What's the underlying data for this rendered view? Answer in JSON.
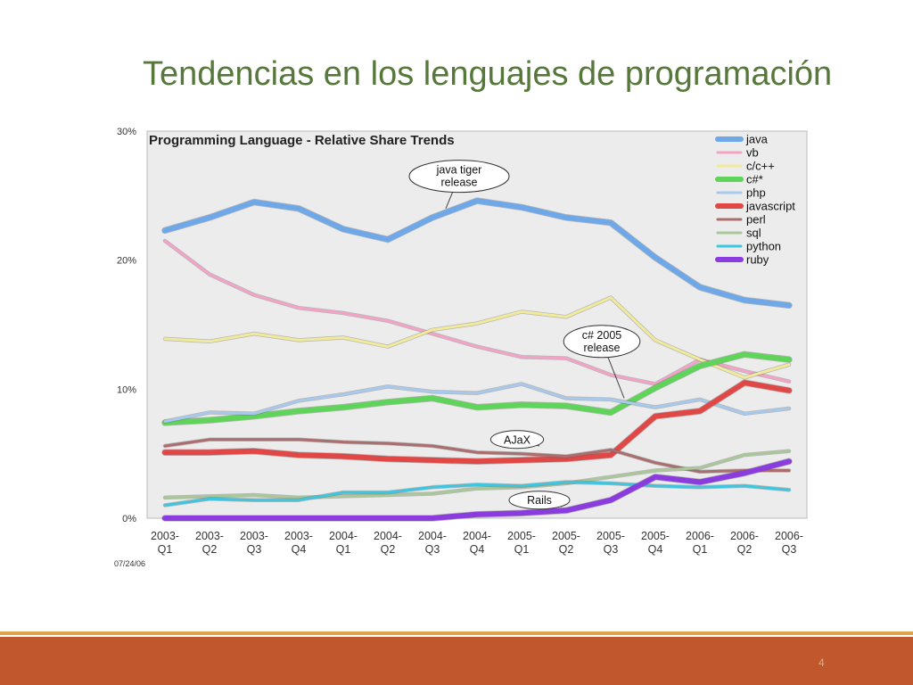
{
  "slide": {
    "title": "Tendencias en los lenguajes de programación",
    "page_number": "4",
    "footer_color": "#c0572d",
    "footer_line_color": "#e0a24a"
  },
  "chart_data": {
    "type": "line",
    "title": "Programming Language - Relative Share Trends",
    "date_note": "07/24/06",
    "ylim": [
      0,
      30
    ],
    "yticks": [
      {
        "value": 0,
        "label": "0%"
      },
      {
        "value": 10,
        "label": "10%"
      },
      {
        "value": 20,
        "label": "20%"
      },
      {
        "value": 30,
        "label": "30%"
      }
    ],
    "categories": [
      [
        "2003-",
        "Q1"
      ],
      [
        "2003-",
        "Q2"
      ],
      [
        "2003-",
        "Q3"
      ],
      [
        "2003-",
        "Q4"
      ],
      [
        "2004-",
        "Q1"
      ],
      [
        "2004-",
        "Q2"
      ],
      [
        "2004-",
        "Q3"
      ],
      [
        "2004-",
        "Q4"
      ],
      [
        "2005-",
        "Q1"
      ],
      [
        "2005-",
        "Q2"
      ],
      [
        "2005-",
        "Q3"
      ],
      [
        "2005-",
        "Q4"
      ],
      [
        "2006-",
        "Q1"
      ],
      [
        "2006-",
        "Q2"
      ],
      [
        "2006-",
        "Q3"
      ]
    ],
    "legend_position": "top-right",
    "plot_background": "#ececec",
    "series": [
      {
        "name": "java",
        "color": "#6fa8e8",
        "width": 6,
        "values": [
          22.3,
          23.3,
          24.5,
          24.0,
          22.4,
          21.6,
          23.3,
          24.6,
          24.1,
          23.3,
          22.9,
          20.2,
          17.9,
          16.9,
          16.5
        ]
      },
      {
        "name": "vb",
        "color": "#f2a3c6",
        "width": 3,
        "values": [
          21.5,
          18.9,
          17.3,
          16.3,
          15.9,
          15.3,
          14.3,
          13.3,
          12.5,
          12.4,
          11.1,
          10.4,
          12.3,
          11.4,
          10.6
        ]
      },
      {
        "name": "c/c++",
        "color": "#f0ea9a",
        "width": 3,
        "values": [
          13.9,
          13.7,
          14.3,
          13.8,
          14.0,
          13.3,
          14.6,
          15.1,
          16.0,
          15.6,
          17.1,
          13.8,
          12.3,
          10.9,
          11.9
        ]
      },
      {
        "name": "c#*",
        "color": "#5fd35a",
        "width": 6,
        "values": [
          7.4,
          7.6,
          7.9,
          8.3,
          8.6,
          9.0,
          9.3,
          8.6,
          8.8,
          8.7,
          8.2,
          10.1,
          11.8,
          12.7,
          12.3
        ]
      },
      {
        "name": "php",
        "color": "#a8c8ec",
        "width": 3,
        "values": [
          7.5,
          8.2,
          8.1,
          9.1,
          9.6,
          10.2,
          9.8,
          9.7,
          10.4,
          9.3,
          9.2,
          8.6,
          9.2,
          8.1,
          8.5
        ]
      },
      {
        "name": "javascript",
        "color": "#e04848",
        "width": 6,
        "values": [
          5.1,
          5.1,
          5.2,
          4.9,
          4.8,
          4.6,
          4.5,
          4.4,
          4.5,
          4.6,
          4.9,
          7.9,
          8.3,
          10.5,
          9.9
        ]
      },
      {
        "name": "perl",
        "color": "#aa6e6e",
        "width": 3,
        "values": [
          5.6,
          6.1,
          6.1,
          6.1,
          5.9,
          5.8,
          5.6,
          5.1,
          5.0,
          4.8,
          5.3,
          4.3,
          3.6,
          3.7,
          3.7
        ]
      },
      {
        "name": "sql",
        "color": "#a9c79a",
        "width": 3,
        "values": [
          1.6,
          1.7,
          1.8,
          1.6,
          1.7,
          1.8,
          1.9,
          2.3,
          2.4,
          2.7,
          3.2,
          3.7,
          3.9,
          4.9,
          5.2
        ]
      },
      {
        "name": "python",
        "color": "#3ec5e0",
        "width": 3,
        "values": [
          1.0,
          1.5,
          1.4,
          1.4,
          2.0,
          2.0,
          2.4,
          2.6,
          2.5,
          2.8,
          2.7,
          2.5,
          2.4,
          2.5,
          2.2
        ]
      },
      {
        "name": "ruby",
        "color": "#8a3cde",
        "width": 6,
        "values": [
          0.0,
          0.0,
          0.0,
          0.0,
          0.0,
          0.0,
          0.0,
          0.3,
          0.4,
          0.6,
          1.4,
          3.2,
          2.8,
          3.5,
          4.4
        ]
      }
    ],
    "annotations": [
      {
        "text": [
          "java tiger",
          "release"
        ],
        "x": 6.6,
        "y": 26.5,
        "point_x": 6.3,
        "point_y": 24.0
      },
      {
        "text": [
          "c# 2005",
          "release"
        ],
        "x": 9.8,
        "y": 13.7,
        "point_x": 10.3,
        "point_y": 9.3
      },
      {
        "text": [
          "AJaX"
        ],
        "x": 7.9,
        "y": 6.1,
        "point_x": 8.4,
        "point_y": 5.6
      },
      {
        "text": [
          "Rails"
        ],
        "x": 8.4,
        "y": 1.4,
        "point_x": 8.9,
        "point_y": 0.9
      }
    ]
  }
}
